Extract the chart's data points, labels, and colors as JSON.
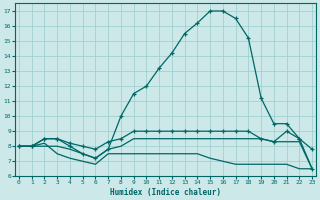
{
  "xlabel": "Humidex (Indice chaleur)",
  "bg_color": "#cce8e8",
  "grid_color": "#99cccc",
  "line_color": "#006666",
  "line1_x": [
    0,
    1,
    2,
    3,
    4,
    5,
    6,
    7,
    8,
    9,
    10,
    11,
    12,
    13,
    14,
    15,
    16,
    17,
    18,
    19,
    20,
    21,
    22,
    23
  ],
  "line1_y": [
    8.0,
    8.0,
    8.5,
    8.5,
    8.0,
    7.5,
    7.2,
    7.8,
    10.0,
    11.5,
    12.0,
    13.2,
    14.2,
    15.5,
    16.2,
    17.0,
    17.0,
    16.5,
    15.2,
    11.2,
    9.5,
    9.5,
    8.5,
    7.8
  ],
  "line2_x": [
    0,
    1,
    2,
    3,
    4,
    5,
    6,
    7,
    8,
    9,
    10,
    11,
    12,
    13,
    14,
    15,
    16,
    17,
    18,
    19,
    20,
    21,
    22,
    23
  ],
  "line2_y": [
    8.0,
    8.0,
    8.5,
    8.5,
    8.2,
    8.0,
    7.8,
    8.3,
    8.5,
    9.0,
    9.0,
    9.0,
    9.0,
    9.0,
    9.0,
    9.0,
    9.0,
    9.0,
    9.0,
    8.5,
    8.3,
    9.0,
    8.5,
    6.5
  ],
  "line3_x": [
    0,
    1,
    2,
    3,
    4,
    5,
    6,
    7,
    8,
    9,
    10,
    11,
    12,
    13,
    14,
    15,
    16,
    17,
    18,
    19,
    20,
    21,
    22,
    23
  ],
  "line3_y": [
    8.0,
    8.0,
    8.2,
    7.5,
    7.2,
    7.0,
    6.8,
    7.5,
    7.5,
    7.5,
    7.5,
    7.5,
    7.5,
    7.5,
    7.5,
    7.2,
    7.0,
    6.8,
    6.8,
    6.8,
    6.8,
    6.8,
    6.5,
    6.5
  ],
  "line4_x": [
    0,
    1,
    2,
    3,
    4,
    5,
    6,
    7,
    8,
    9,
    10,
    11,
    12,
    13,
    14,
    15,
    16,
    17,
    18,
    19,
    20,
    21,
    22,
    23
  ],
  "line4_y": [
    8.0,
    8.0,
    8.0,
    8.0,
    7.8,
    7.5,
    7.2,
    7.8,
    8.0,
    8.5,
    8.5,
    8.5,
    8.5,
    8.5,
    8.5,
    8.5,
    8.5,
    8.5,
    8.5,
    8.5,
    8.3,
    8.3,
    8.3,
    6.5
  ],
  "xlim": [
    -0.3,
    23.3
  ],
  "ylim": [
    6,
    17.5
  ],
  "yticks": [
    6,
    7,
    8,
    9,
    10,
    11,
    12,
    13,
    14,
    15,
    16,
    17
  ],
  "xticks": [
    0,
    1,
    2,
    3,
    4,
    5,
    6,
    7,
    8,
    9,
    10,
    11,
    12,
    13,
    14,
    15,
    16,
    17,
    18,
    19,
    20,
    21,
    22,
    23
  ]
}
